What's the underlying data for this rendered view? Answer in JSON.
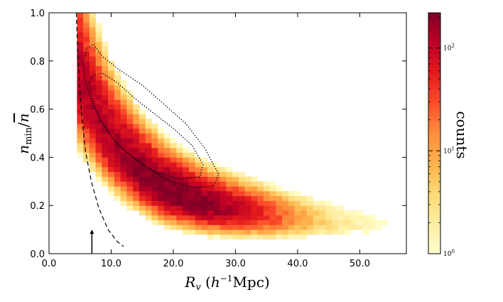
{
  "chart_data": {
    "type": "heatmap",
    "xlabel": "R_v  (h^-1 Mpc)",
    "xlabel_parts": {
      "var": "R",
      "sub": "v",
      "unit_h": "h",
      "unit_exp": "−1",
      "unit": "Mpc"
    },
    "ylabel": "n_min / n̄",
    "ylabel_parts": {
      "var": "n",
      "sub": "min",
      "den": "n"
    },
    "xlim": [
      0,
      57.5
    ],
    "ylim": [
      0,
      1.0
    ],
    "xticks": [
      0,
      10,
      20,
      30,
      40,
      50
    ],
    "xtick_labels": [
      "0.0",
      "10.0",
      "20.0",
      "30.0",
      "40.0",
      "50.0"
    ],
    "yticks": [
      0,
      0.2,
      0.4,
      0.6,
      0.8,
      1.0
    ],
    "ytick_labels": [
      "0.0",
      "0.2",
      "0.4",
      "0.6",
      "0.8",
      "1.0"
    ],
    "bin_size": {
      "x": 1.0,
      "y": 0.02
    },
    "colorbar": {
      "label": "counts",
      "scale": "log",
      "range": [
        1,
        220
      ],
      "ticks": [
        {
          "value": 1,
          "label": "10^0",
          "base": "10",
          "exp": "0"
        },
        {
          "value": 10,
          "label": "10^1",
          "base": "10",
          "exp": "1"
        },
        {
          "value": 100,
          "label": "10^2",
          "base": "10",
          "exp": "2"
        }
      ],
      "colors": [
        "#ffffcc",
        "#ffeda0",
        "#fed976",
        "#feb24c",
        "#fd8d3c",
        "#fc4e2a",
        "#e31a1c",
        "#bd0026",
        "#800026"
      ]
    },
    "ridge": {
      "description": "peak density ridge of the 2D histogram",
      "x": [
        6,
        8,
        10,
        12,
        15,
        18,
        21,
        25,
        30,
        35,
        40,
        45,
        50,
        55
      ],
      "y": [
        0.64,
        0.54,
        0.46,
        0.4,
        0.33,
        0.275,
        0.24,
        0.205,
        0.18,
        0.16,
        0.145,
        0.13,
        0.12,
        0.112
      ]
    },
    "peak_counts": 220,
    "contours": [
      {
        "name": "inner contour",
        "style": "dotted",
        "x": [
          6.5,
          7.0,
          8.5,
          11,
          14,
          17,
          20,
          23,
          24.8,
          24.3,
          21,
          17,
          13.5,
          10.5,
          8.5,
          7.3,
          6.8,
          6.5
        ],
        "y": [
          0.71,
          0.74,
          0.75,
          0.71,
          0.64,
          0.58,
          0.52,
          0.45,
          0.37,
          0.32,
          0.31,
          0.34,
          0.4,
          0.47,
          0.55,
          0.61,
          0.66,
          0.71
        ]
      },
      {
        "name": "outer contour",
        "style": "dotted",
        "x": [
          5.5,
          6.0,
          7.2,
          8.5,
          11.5,
          15,
          18.5,
          22,
          25,
          27.3,
          26.5,
          23.5,
          19.5,
          15,
          11,
          8.3,
          6.8,
          5.8,
          5.5
        ],
        "y": [
          0.79,
          0.85,
          0.87,
          0.82,
          0.76,
          0.7,
          0.62,
          0.54,
          0.44,
          0.33,
          0.28,
          0.275,
          0.3,
          0.37,
          0.45,
          0.55,
          0.64,
          0.72,
          0.79
        ]
      }
    ],
    "limit_curve": {
      "name": "resolution limit",
      "style": "dashed",
      "x": [
        4.4,
        4.6,
        4.9,
        5.3,
        5.9,
        6.8,
        8.0,
        9.5,
        11.0,
        12.0
      ],
      "y": [
        1.0,
        0.85,
        0.7,
        0.56,
        0.42,
        0.3,
        0.19,
        0.1,
        0.05,
        0.03
      ]
    },
    "arrow_marker": {
      "x": 6.9,
      "y_from": 0.0,
      "y_to": 0.1
    }
  }
}
